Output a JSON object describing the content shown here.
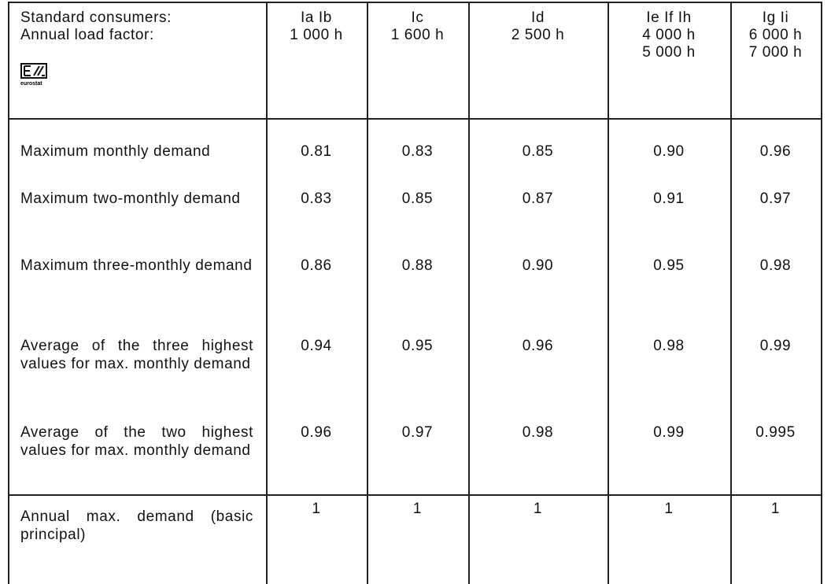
{
  "header": {
    "lines": [
      "Standard consumers:",
      "Annual load factor:"
    ],
    "logo_text": "eurostat",
    "columns": [
      [
        "Ia Ib",
        "1 000 h"
      ],
      [
        "Ic",
        "1 600 h"
      ],
      [
        "Id",
        "2 500 h"
      ],
      [
        "Ie If Ih",
        "4 000 h",
        "5 000 h"
      ],
      [
        "Ig Ii",
        "6 000 h",
        "7 000 h"
      ]
    ]
  },
  "table": {
    "rows": [
      {
        "label": "Maximum monthly demand",
        "values": [
          "0.81",
          "0.83",
          "0.85",
          "0.90",
          "0.96"
        ]
      },
      {
        "label": "Maximum two-monthly demand",
        "values": [
          "0.83",
          "0.85",
          "0.87",
          "0.91",
          "0.97"
        ]
      },
      {
        "label": "Maximum three-monthly demand",
        "values": [
          "0.86",
          "0.88",
          "0.90",
          "0.95",
          "0.98"
        ]
      },
      {
        "label": "Average of the three highest values for max. monthly demand",
        "values": [
          "0.94",
          "0.95",
          "0.96",
          "0.98",
          "0.99"
        ]
      },
      {
        "label": "Average of the two highest values for max. monthly demand",
        "values": [
          "0.96",
          "0.97",
          "0.98",
          "0.99",
          "0.995"
        ]
      }
    ],
    "last_row": {
      "label": "Annual max. demand (basic principal)",
      "values": [
        "1",
        "1",
        "1",
        "1",
        "1"
      ]
    }
  }
}
